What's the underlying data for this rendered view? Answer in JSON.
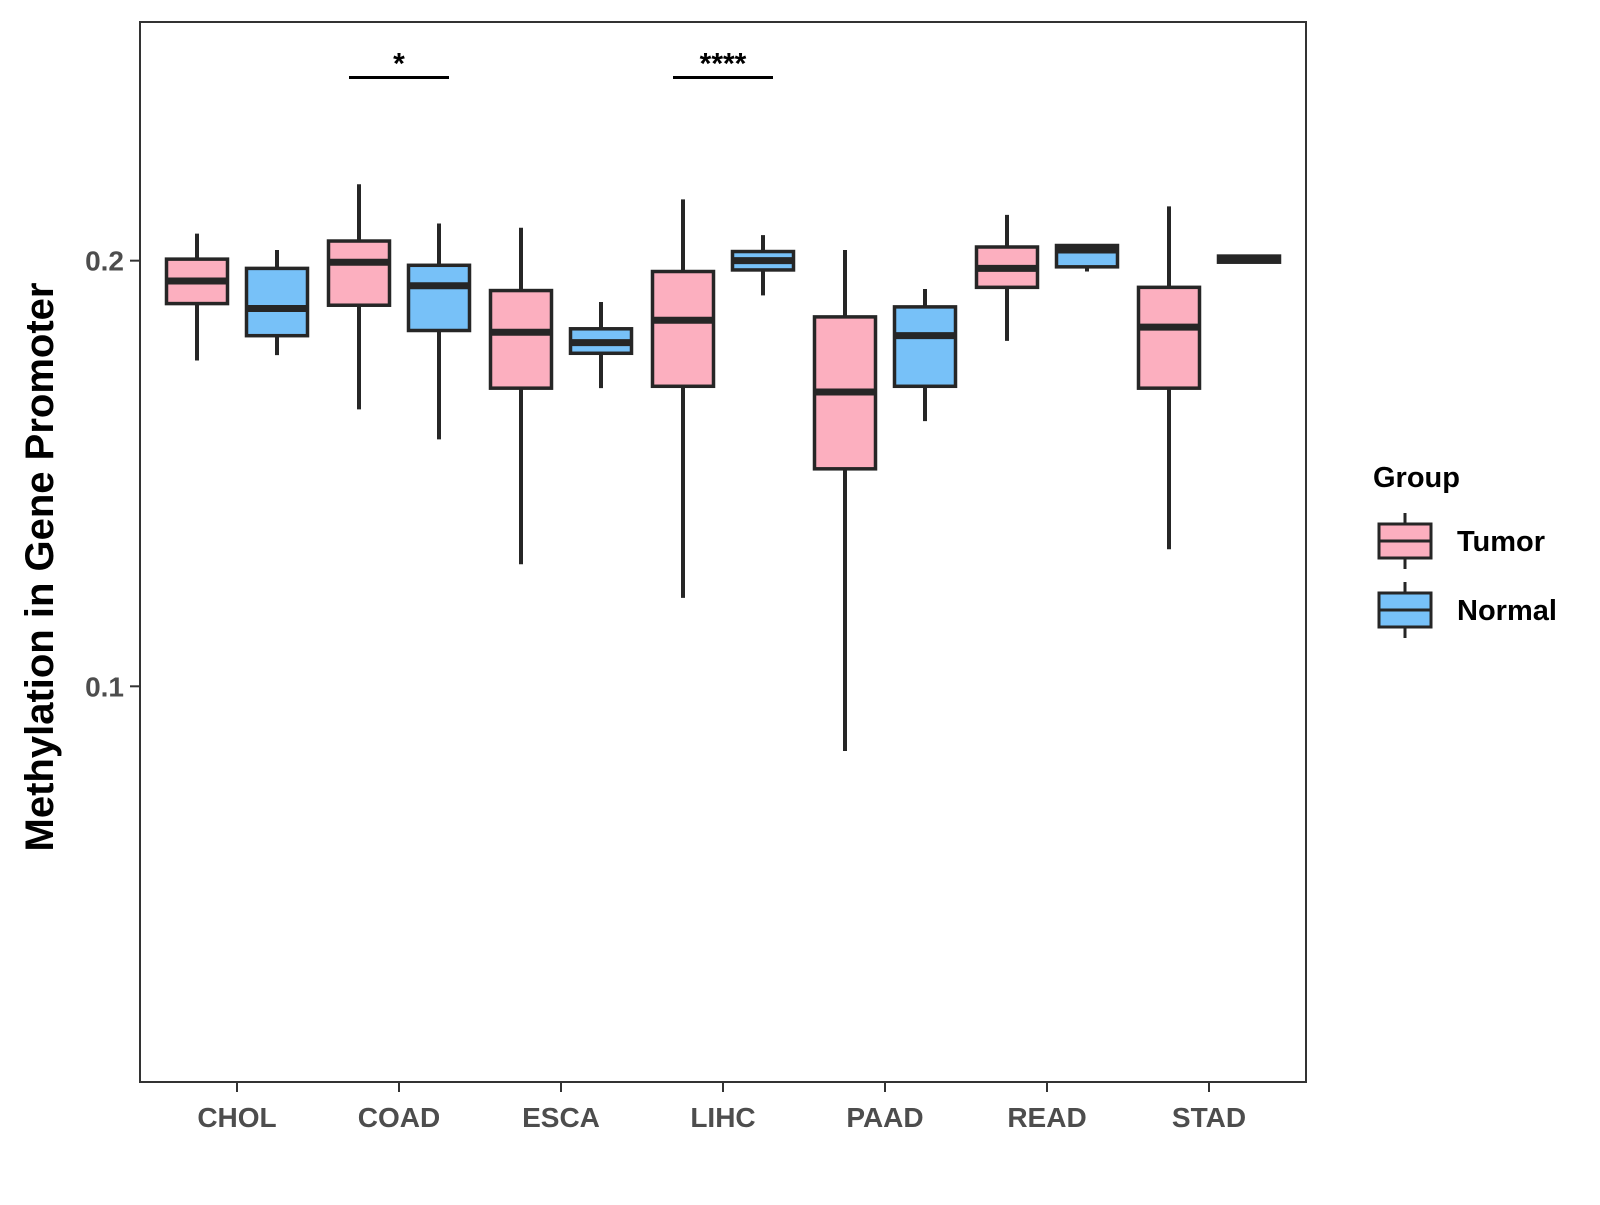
{
  "chart_data": {
    "type": "boxplot",
    "title": "",
    "xlabel": "",
    "ylabel": "Methylation in Gene Promoter",
    "y_scale": "log10",
    "ylim": [
      0.0525,
      0.295
    ],
    "y_ticks": [
      {
        "value": 0.1,
        "label": "0.1"
      },
      {
        "value": 0.2,
        "label": "0.2"
      }
    ],
    "grid": false,
    "categories": [
      "CHOL",
      "COAD",
      "ESCA",
      "LIHC",
      "PAAD",
      "READ",
      "STAD"
    ],
    "legend": {
      "title": "Group",
      "position": "right",
      "entries": [
        {
          "name": "Tumor",
          "color": "#FCAFBF"
        },
        {
          "name": "Normal",
          "color": "#77C1F8"
        }
      ]
    },
    "series": [
      {
        "name": "Tumor",
        "color": "#FCAFBF",
        "boxes": [
          {
            "category": "CHOL",
            "min": 0.17,
            "q1": 0.1865,
            "median": 0.1935,
            "q3": 0.2005,
            "max": 0.209
          },
          {
            "category": "COAD",
            "min": 0.157,
            "q1": 0.186,
            "median": 0.1995,
            "q3": 0.2065,
            "max": 0.2265
          },
          {
            "category": "ESCA",
            "min": 0.122,
            "q1": 0.1625,
            "median": 0.178,
            "q3": 0.1905,
            "max": 0.211
          },
          {
            "category": "LIHC",
            "min": 0.1155,
            "q1": 0.163,
            "median": 0.1815,
            "q3": 0.1965,
            "max": 0.221
          },
          {
            "category": "PAAD",
            "min": 0.09,
            "q1": 0.1425,
            "median": 0.1615,
            "q3": 0.1825,
            "max": 0.2035
          },
          {
            "category": "READ",
            "min": 0.1755,
            "q1": 0.1915,
            "median": 0.1975,
            "q3": 0.2045,
            "max": 0.2155
          },
          {
            "category": "STAD",
            "min": 0.125,
            "q1": 0.1625,
            "median": 0.1795,
            "q3": 0.1915,
            "max": 0.2185
          }
        ]
      },
      {
        "name": "Normal",
        "color": "#77C1F8",
        "boxes": [
          {
            "category": "CHOL",
            "min": 0.1715,
            "q1": 0.177,
            "median": 0.185,
            "q3": 0.1975,
            "max": 0.2035
          },
          {
            "category": "COAD",
            "min": 0.1495,
            "q1": 0.1785,
            "median": 0.192,
            "q3": 0.1985,
            "max": 0.2125
          },
          {
            "category": "ESCA",
            "min": 0.1625,
            "q1": 0.172,
            "median": 0.175,
            "q3": 0.179,
            "max": 0.187
          },
          {
            "category": "LIHC",
            "min": 0.189,
            "q1": 0.197,
            "median": 0.2,
            "q3": 0.203,
            "max": 0.2085
          },
          {
            "category": "PAAD",
            "min": 0.154,
            "q1": 0.163,
            "median": 0.177,
            "q3": 0.1855,
            "max": 0.191
          },
          {
            "category": "READ",
            "min": 0.1965,
            "q1": 0.198,
            "median": 0.2035,
            "q3": 0.205,
            "max": 0.2055
          },
          {
            "category": "STAD",
            "min": 0.1995,
            "q1": 0.1995,
            "median": 0.2005,
            "q3": 0.2015,
            "max": 0.2015
          }
        ]
      }
    ],
    "annotations": [
      {
        "category": "COAD",
        "label": "*",
        "value": 0.2695
      },
      {
        "category": "LIHC",
        "label": "****",
        "value": 0.2695
      }
    ]
  }
}
